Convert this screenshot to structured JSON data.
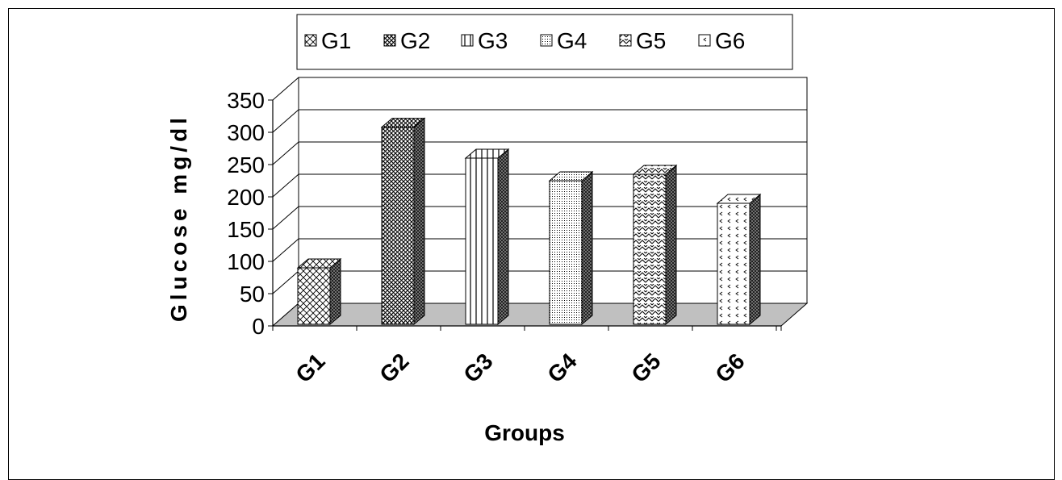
{
  "chart_data": {
    "type": "bar",
    "categories": [
      "G1",
      "G2",
      "G3",
      "G4",
      "G5",
      "G6"
    ],
    "values": [
      90,
      308,
      260,
      225,
      235,
      190
    ],
    "xlabel": "Groups",
    "ylabel": "Glucose mg/dl",
    "ylim": [
      0,
      350
    ],
    "yticks": [
      "0",
      "50",
      "100",
      "150",
      "200",
      "250",
      "300",
      "350"
    ],
    "grid": true,
    "legend": {
      "position": "top",
      "entries": [
        "G1",
        "G2",
        "G3",
        "G4",
        "G5",
        "G6"
      ]
    },
    "colors": {
      "frame": "#000000",
      "floor": "#c0c0c0",
      "bar_fill": "#ffffff",
      "bar_pattern": "#000000"
    },
    "patterns": [
      "crosshatch",
      "dense-crosshatch",
      "vertical-lines",
      "dots",
      "zigzag",
      "arrows"
    ]
  }
}
